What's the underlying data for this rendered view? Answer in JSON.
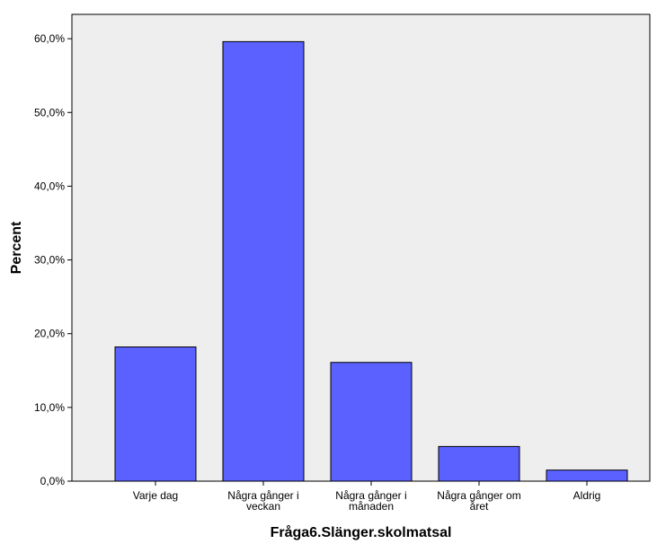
{
  "chart_data": {
    "type": "bar",
    "categories": [
      [
        "Varje dag"
      ],
      [
        "Några gånger i",
        "veckan"
      ],
      [
        "Några gånger i",
        "månaden"
      ],
      [
        "Några gånger om",
        "året"
      ],
      [
        "Aldrig"
      ]
    ],
    "values": [
      18.2,
      59.6,
      16.1,
      4.7,
      1.5
    ],
    "xlabel": "Fråga6.Slänger.skolmatsal",
    "ylabel": "Percent",
    "ylim": [
      0,
      63.3
    ],
    "yticks": [
      0,
      10,
      20,
      30,
      40,
      50,
      60
    ],
    "ytick_labels": [
      "0,0%",
      "10,0%",
      "20,0%",
      "30,0%",
      "40,0%",
      "50,0%",
      "60,0%"
    ],
    "grid": false,
    "colors": {
      "bar_fill": "#5b61ff",
      "bar_stroke": "#000000",
      "plot_background": "#eeeeee",
      "frame": "#000000"
    }
  }
}
